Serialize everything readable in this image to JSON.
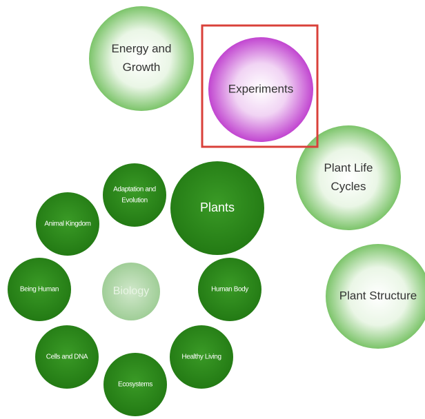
{
  "nodes": [
    {
      "lines": [
        "Energy and",
        "Growth"
      ]
    },
    {
      "lines": [
        "Experiments"
      ]
    },
    {
      "lines": [
        "Plant Life",
        "Cycles"
      ]
    },
    {
      "lines": [
        "Plant Structure"
      ]
    },
    {
      "lines": [
        "Plants"
      ]
    },
    {
      "lines": [
        "Adaptation and",
        "Evolution"
      ]
    },
    {
      "lines": [
        "Animal Kingdom"
      ]
    },
    {
      "lines": [
        "Being Human"
      ]
    },
    {
      "lines": [
        "Biology"
      ]
    },
    {
      "lines": [
        "Human Body"
      ]
    },
    {
      "lines": [
        "Cells and DNA"
      ]
    },
    {
      "lines": [
        "Ecosystems"
      ]
    },
    {
      "lines": [
        "Healthy Living"
      ]
    }
  ]
}
